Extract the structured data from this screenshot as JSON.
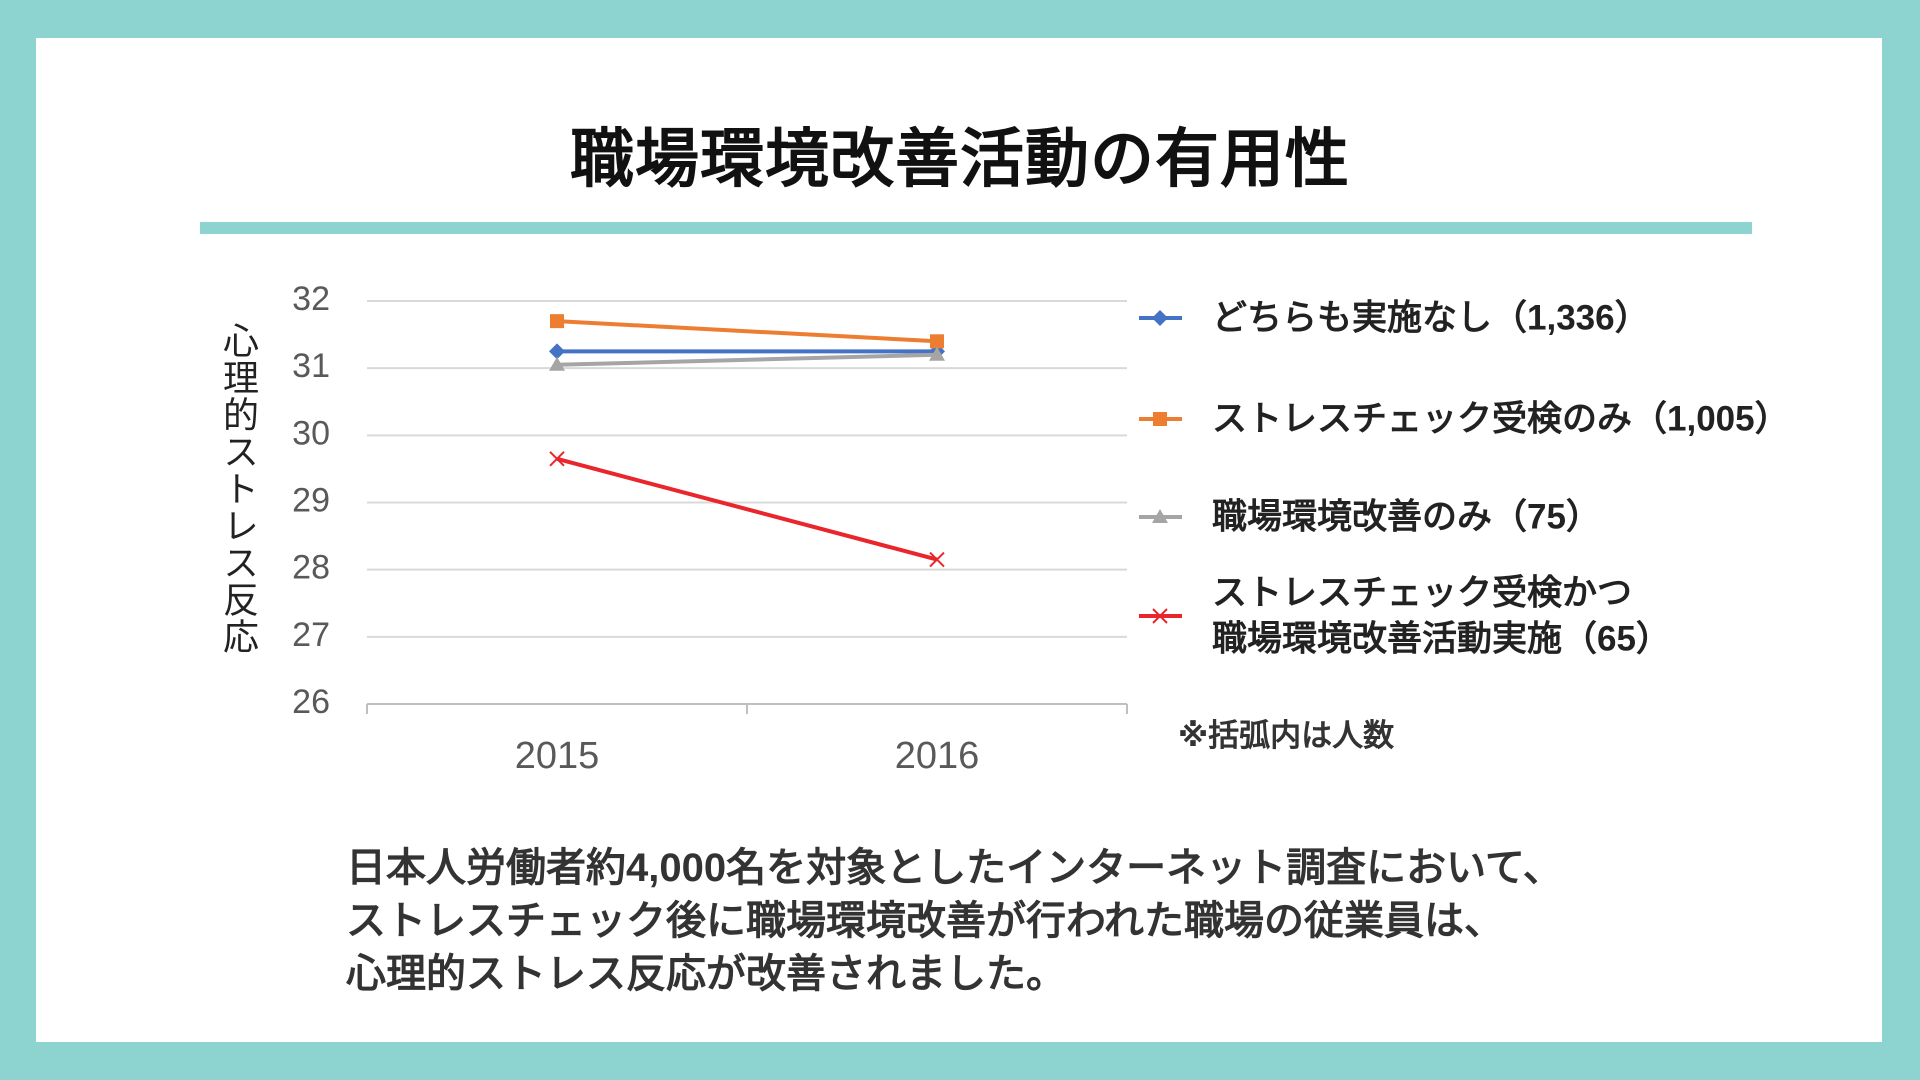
{
  "title": "職場環境改善活動の有用性",
  "note": "※括弧内は人数",
  "body": [
    "日本人労働者約4,000名を対象としたインターネット調査において、",
    "ストレスチェック後に職場環境改善が行われた職場の従業員は、",
    "心理的ストレス反応が改善されました。"
  ],
  "chart_data": {
    "type": "line",
    "y_label": "心理的ストレス反応",
    "categories": [
      "2015",
      "2016"
    ],
    "ylim": [
      26,
      32
    ],
    "yticks": [
      26,
      27,
      28,
      29,
      30,
      31,
      32
    ],
    "grid": true,
    "legend": "right",
    "series": [
      {
        "name": "どちらも実施なし（1,336）",
        "color": "#4472c4",
        "marker": "diamond",
        "values": [
          31.25,
          31.25
        ]
      },
      {
        "name": "ストレスチェック受検のみ（1,005）",
        "color": "#ed7d31",
        "marker": "square",
        "values": [
          31.7,
          31.4
        ]
      },
      {
        "name": "職場環境改善のみ（75）",
        "color": "#a5a5a5",
        "marker": "triangle",
        "values": [
          31.05,
          31.2
        ]
      },
      {
        "name": "ストレスチェック受検かつ\n職場環境改善活動実施（65）",
        "color": "#e8262b",
        "marker": "x",
        "values": [
          29.65,
          28.15
        ]
      }
    ]
  }
}
